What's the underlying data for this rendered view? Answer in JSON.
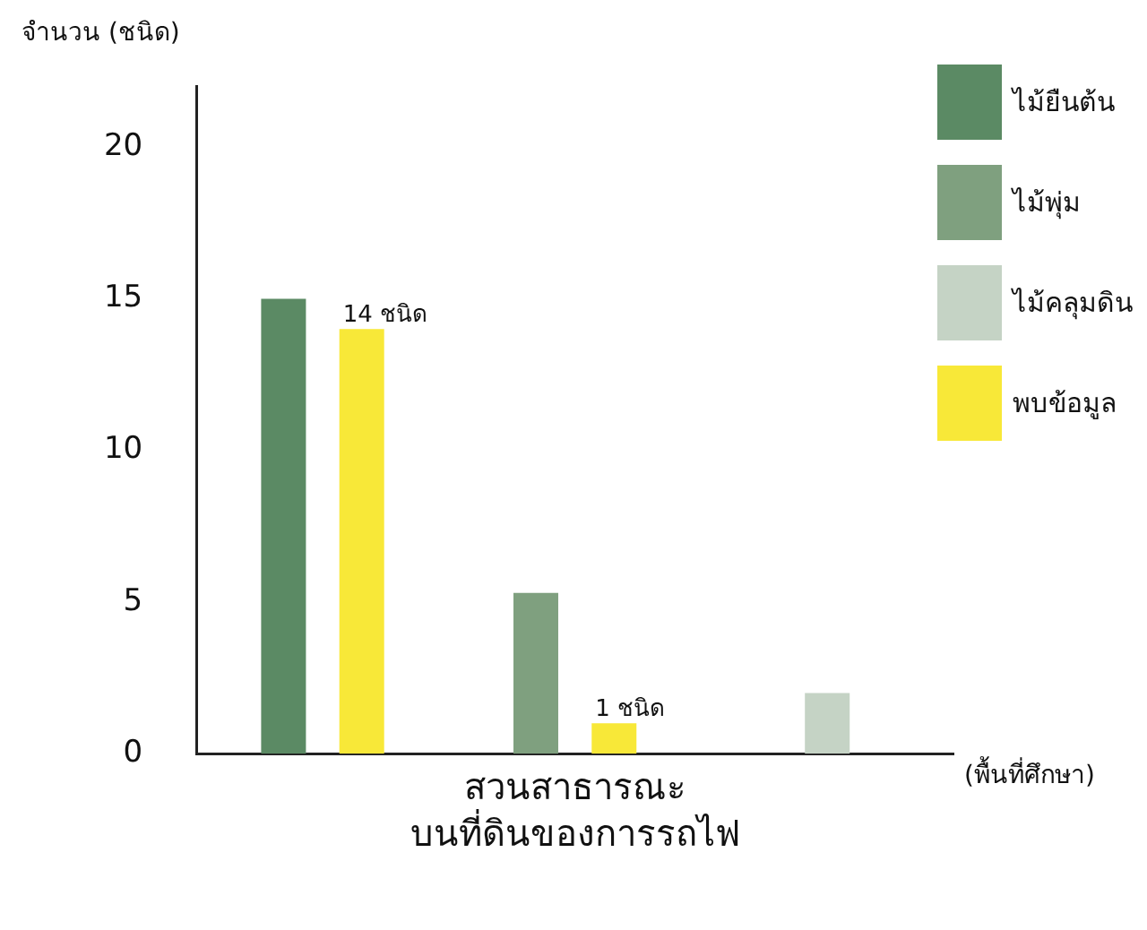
{
  "chart_data": {
    "type": "bar",
    "ylabel": "จำนวน (ชนิด)",
    "xlabel": "(พื้นที่ศึกษา)",
    "annotations": [
      "สวนสาธารณะ\nบนที่ดินของการรถไฟ"
    ],
    "categories": [
      null,
      null,
      null
    ],
    "series": [
      {
        "name": "ไม้ยืนต้น",
        "color": "#5b8a64",
        "values": [
          15,
          null,
          null
        ]
      },
      {
        "name": "ไม้พุ่ม",
        "color": "#7fa07f",
        "values": [
          null,
          5.3,
          null
        ]
      },
      {
        "name": "ไม้คลุมดิน",
        "color": "#c5d3c5",
        "values": [
          null,
          null,
          2
        ]
      },
      {
        "name": "พบข้อมูล",
        "color": "#f8e838",
        "values": [
          14,
          1,
          null
        ],
        "value_labels": [
          "14 ชนิด",
          "1 ชนิด",
          null
        ]
      }
    ],
    "ylim": [
      0,
      22
    ],
    "yticks": [
      0,
      5,
      10,
      15,
      20
    ],
    "grid": false,
    "legend": "top right"
  }
}
